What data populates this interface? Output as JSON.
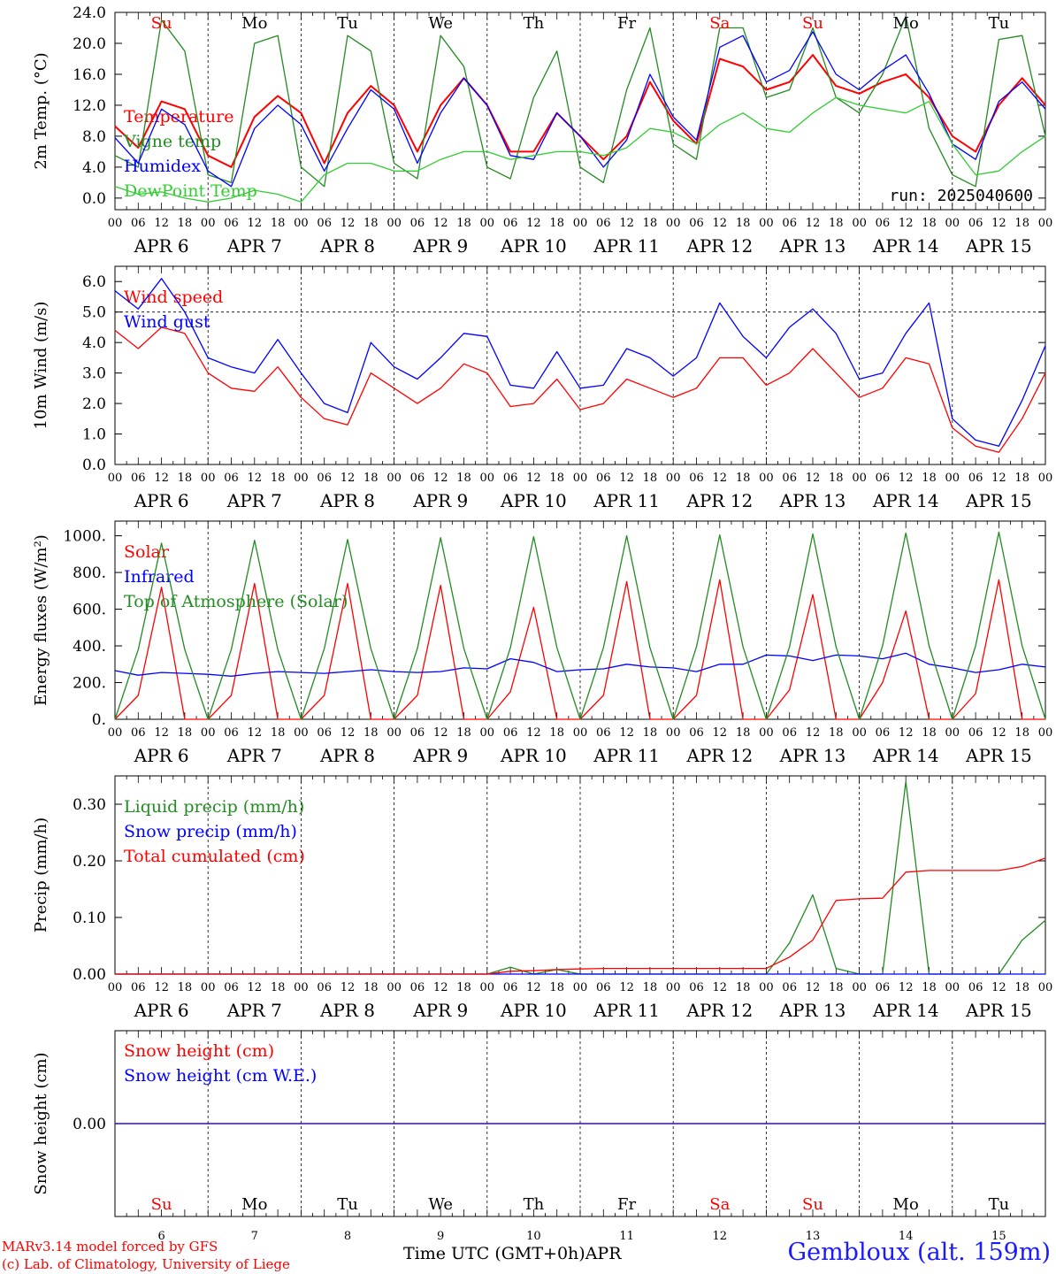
{
  "chart_data": [
    {
      "type": "line",
      "ylabel": "2m Temp. (°C)",
      "ylim": [
        -1.5,
        24
      ],
      "yticks": [
        "0.0",
        "4.0",
        "8.0",
        "12.0",
        "16.0",
        "20.0",
        "24.0"
      ],
      "yticks_values": [
        0,
        4,
        8,
        12,
        16,
        20,
        24
      ],
      "annotation": "run: 2025040600",
      "x_hours": [
        0,
        6,
        12,
        18,
        24,
        30,
        36,
        42,
        48,
        54,
        60,
        66,
        72,
        78,
        84,
        90,
        96,
        102,
        108,
        114,
        120,
        126,
        132,
        138,
        144,
        150,
        156,
        162,
        168,
        174,
        180,
        186,
        192,
        198,
        204,
        210,
        216,
        222,
        228,
        234,
        240
      ],
      "series": [
        {
          "name": "Temperature",
          "color": "#ff0000",
          "values": [
            9.3,
            6.5,
            12.5,
            11.5,
            5.5,
            4.0,
            10.5,
            13.2,
            11.0,
            4.5,
            11.0,
            14.5,
            12.0,
            6.0,
            12.0,
            15.5,
            12.0,
            6.0,
            6.0,
            11.0,
            8.0,
            5.0,
            8.0,
            15.0,
            10.0,
            7.0,
            18.0,
            17.0,
            14.0,
            15.0,
            18.5,
            14.5,
            13.5,
            15.0,
            16.0,
            13.0,
            8.0,
            6.0,
            12.0,
            15.5,
            12.0
          ]
        },
        {
          "name": "Vigne temp",
          "color": "#228b22",
          "values": [
            5.5,
            4.0,
            23.0,
            19.0,
            3.0,
            2.0,
            20.0,
            21.0,
            4.0,
            1.5,
            21.0,
            19.0,
            4.5,
            2.5,
            21.0,
            17.0,
            4.0,
            2.5,
            13.0,
            19.0,
            4.0,
            2.0,
            14.0,
            22.0,
            7.0,
            5.0,
            22.0,
            22.0,
            13.0,
            14.0,
            22.0,
            13.0,
            11.0,
            16.0,
            23.5,
            9.0,
            3.0,
            1.5,
            20.5,
            21.0,
            8.0
          ]
        },
        {
          "name": "Humidex",
          "color": "#0000ff",
          "values": [
            7.8,
            4.5,
            11.5,
            9.5,
            3.5,
            1.5,
            9.0,
            12.0,
            9.5,
            3.5,
            9.0,
            14.0,
            11.5,
            4.5,
            11.0,
            15.5,
            12.0,
            5.5,
            5.0,
            11.0,
            8.0,
            4.0,
            7.5,
            16.0,
            10.5,
            7.5,
            19.5,
            21.0,
            15.0,
            16.5,
            21.5,
            16.0,
            14.0,
            16.5,
            18.5,
            13.5,
            7.0,
            5.0,
            12.5,
            15.0,
            11.5
          ]
        },
        {
          "name": "DewPoint Temp",
          "color": "#33cc33",
          "values": [
            1.5,
            0.5,
            0.8,
            0.0,
            -0.5,
            0.0,
            1.0,
            0.5,
            -0.5,
            3.0,
            4.5,
            4.5,
            3.5,
            3.5,
            5.0,
            6.0,
            6.0,
            5.0,
            5.5,
            6.0,
            6.0,
            5.5,
            6.5,
            9.0,
            8.5,
            7.0,
            9.5,
            11.0,
            9.0,
            8.5,
            11.0,
            13.0,
            12.0,
            11.5,
            11.0,
            12.5,
            7.0,
            3.0,
            3.5,
            6.0,
            8.0
          ]
        }
      ]
    },
    {
      "type": "line",
      "ylabel": "10m Wind (m/s)",
      "ylim": [
        0,
        6.5
      ],
      "yticks": [
        "0.0",
        "1.0",
        "2.0",
        "3.0",
        "4.0",
        "5.0",
        "6.0"
      ],
      "yticks_values": [
        0,
        1,
        2,
        3,
        4,
        5,
        6
      ],
      "x_hours": [
        0,
        6,
        12,
        18,
        24,
        30,
        36,
        42,
        48,
        54,
        60,
        66,
        72,
        78,
        84,
        90,
        96,
        102,
        108,
        114,
        120,
        126,
        132,
        138,
        144,
        150,
        156,
        162,
        168,
        174,
        180,
        186,
        192,
        198,
        204,
        210,
        216,
        222,
        228,
        234,
        240
      ],
      "series": [
        {
          "name": "Wind speed",
          "color": "#ff0000",
          "values": [
            4.4,
            3.8,
            4.5,
            4.3,
            3.0,
            2.5,
            2.4,
            3.2,
            2.2,
            1.5,
            1.3,
            3.0,
            2.5,
            2.0,
            2.5,
            3.3,
            3.0,
            1.9,
            2.0,
            2.8,
            1.8,
            2.0,
            2.8,
            2.5,
            2.2,
            2.5,
            3.5,
            3.5,
            2.6,
            3.0,
            3.8,
            3.0,
            2.2,
            2.5,
            3.5,
            3.3,
            1.2,
            0.6,
            0.4,
            1.5,
            3.0
          ]
        },
        {
          "name": "Wind gust",
          "color": "#0000ff",
          "values": [
            5.7,
            5.1,
            6.1,
            5.0,
            3.5,
            3.2,
            3.0,
            4.1,
            3.0,
            2.0,
            1.7,
            4.0,
            3.2,
            2.8,
            3.5,
            4.3,
            4.2,
            2.6,
            2.5,
            3.7,
            2.5,
            2.6,
            3.8,
            3.5,
            2.9,
            3.5,
            5.3,
            4.2,
            3.5,
            4.5,
            5.1,
            4.3,
            2.8,
            3.0,
            4.3,
            5.3,
            1.5,
            0.8,
            0.6,
            2.1,
            3.9
          ]
        }
      ]
    },
    {
      "type": "line",
      "ylabel": "Energy fluxes (W/m²)",
      "ylim": [
        0,
        1080
      ],
      "yticks": [
        "0.",
        "200.",
        "400.",
        "600.",
        "800.",
        "1000."
      ],
      "yticks_values": [
        0,
        200,
        400,
        600,
        800,
        1000
      ],
      "x_hours": [
        0,
        6,
        12,
        18,
        24,
        30,
        36,
        42,
        48,
        54,
        60,
        66,
        72,
        78,
        84,
        90,
        96,
        102,
        108,
        114,
        120,
        126,
        132,
        138,
        144,
        150,
        156,
        162,
        168,
        174,
        180,
        186,
        192,
        198,
        204,
        210,
        216,
        222,
        228,
        234,
        240
      ],
      "series": [
        {
          "name": "Solar",
          "color": "#ff0000",
          "values": [
            0,
            130,
            720,
            0,
            0,
            130,
            740,
            0,
            0,
            130,
            740,
            0,
            0,
            130,
            730,
            0,
            0,
            150,
            610,
            0,
            0,
            130,
            750,
            0,
            0,
            130,
            760,
            0,
            0,
            160,
            680,
            0,
            0,
            200,
            590,
            0,
            0,
            140,
            760,
            0,
            0
          ]
        },
        {
          "name": "Infrared",
          "color": "#0000ff",
          "values": [
            265,
            240,
            255,
            250,
            245,
            235,
            250,
            260,
            255,
            250,
            260,
            270,
            260,
            255,
            260,
            280,
            275,
            330,
            310,
            260,
            270,
            275,
            300,
            285,
            280,
            260,
            300,
            300,
            350,
            345,
            320,
            350,
            345,
            330,
            360,
            300,
            280,
            255,
            270,
            300,
            285
          ]
        },
        {
          "name": "Top of Atmosphere (Solar)",
          "color": "#228b22",
          "values": [
            0,
            380,
            960,
            380,
            0,
            380,
            975,
            380,
            0,
            385,
            980,
            385,
            0,
            385,
            990,
            385,
            0,
            390,
            995,
            390,
            0,
            390,
            1000,
            390,
            0,
            395,
            1005,
            395,
            0,
            395,
            1010,
            395,
            0,
            400,
            1015,
            400,
            0,
            400,
            1020,
            400,
            0
          ]
        }
      ]
    },
    {
      "type": "line",
      "ylabel": "Precip (mm/h)",
      "ylim": [
        0,
        0.35
      ],
      "yticks": [
        "0.00",
        "0.10",
        "0.20",
        "0.30"
      ],
      "yticks_values": [
        0,
        0.1,
        0.2,
        0.3
      ],
      "x_hours": [
        0,
        6,
        12,
        18,
        24,
        30,
        36,
        42,
        48,
        54,
        60,
        66,
        72,
        78,
        84,
        90,
        96,
        102,
        108,
        114,
        120,
        126,
        132,
        138,
        144,
        150,
        156,
        162,
        168,
        174,
        180,
        186,
        192,
        198,
        204,
        210,
        216,
        222,
        228,
        234,
        240
      ],
      "series": [
        {
          "name": "Liquid precip (mm/h)",
          "color": "#228b22",
          "values": [
            0,
            0,
            0,
            0,
            0,
            0,
            0,
            0,
            0,
            0,
            0,
            0,
            0,
            0,
            0,
            0,
            0,
            0.012,
            0,
            0.008,
            0,
            0,
            0,
            0,
            0,
            0,
            0,
            0,
            0,
            0.055,
            0.14,
            0.01,
            0,
            0,
            0.34,
            0,
            0,
            0,
            0,
            0.06,
            0.095
          ]
        },
        {
          "name": "Snow precip (mm/h)",
          "color": "#0000ff",
          "values": [
            0,
            0,
            0,
            0,
            0,
            0,
            0,
            0,
            0,
            0,
            0,
            0,
            0,
            0,
            0,
            0,
            0,
            0,
            0,
            0,
            0,
            0,
            0,
            0,
            0,
            0,
            0,
            0,
            0,
            0,
            0,
            0,
            0,
            0,
            0,
            0,
            0,
            0,
            0,
            0,
            0
          ]
        },
        {
          "name": "Total cumulated (cm)",
          "color": "#ff0000",
          "values": [
            0,
            0,
            0,
            0,
            0,
            0,
            0,
            0,
            0,
            0,
            0,
            0,
            0,
            0,
            0,
            0,
            0,
            0.005,
            0.006,
            0.008,
            0.009,
            0.01,
            0.01,
            0.01,
            0.01,
            0.01,
            0.01,
            0.01,
            0.01,
            0.03,
            0.06,
            0.13,
            0.133,
            0.134,
            0.18,
            0.183,
            0.183,
            0.183,
            0.183,
            0.19,
            0.205
          ]
        }
      ]
    },
    {
      "type": "line",
      "ylabel": "Snow height (cm)",
      "ylim": [
        -1,
        1
      ],
      "yticks": [
        "0.00"
      ],
      "yticks_values": [
        0
      ],
      "x_hours": [
        0,
        240
      ],
      "series": [
        {
          "name": "Snow height (cm)",
          "color": "#ff0000",
          "values": [
            0,
            0
          ]
        },
        {
          "name": "Snow height (cm W.E.)",
          "color": "#0000ff",
          "values": [
            0,
            0
          ]
        }
      ]
    }
  ],
  "days": [
    {
      "abbr": "Su",
      "date": "APR  6",
      "num": "6",
      "color": "#ff0000"
    },
    {
      "abbr": "Mo",
      "date": "APR  7",
      "num": "7",
      "color": "#000000"
    },
    {
      "abbr": "Tu",
      "date": "APR  8",
      "num": "8",
      "color": "#000000"
    },
    {
      "abbr": "We",
      "date": "APR  9",
      "num": "9",
      "color": "#000000"
    },
    {
      "abbr": "Th",
      "date": "APR 10",
      "num": "10",
      "color": "#000000"
    },
    {
      "abbr": "Fr",
      "date": "APR 11",
      "num": "11",
      "color": "#000000"
    },
    {
      "abbr": "Sa",
      "date": "APR 12",
      "num": "12",
      "color": "#ff0000"
    },
    {
      "abbr": "Su",
      "date": "APR 13",
      "num": "13",
      "color": "#ff0000"
    },
    {
      "abbr": "Mo",
      "date": "APR 14",
      "num": "14",
      "color": "#000000"
    },
    {
      "abbr": "Tu",
      "date": "APR 15",
      "num": "15",
      "color": "#000000"
    }
  ],
  "hour_labels": [
    "00",
    "06",
    "12",
    "18"
  ],
  "footer": {
    "credit_line1": "MARv3.14 model forced by GFS",
    "credit_line2": "(c) Lab. of Climatology, University of Liege",
    "xlabel": "Time UTC (GMT+0h)APR",
    "station": "Gembloux (alt. 159m)"
  }
}
